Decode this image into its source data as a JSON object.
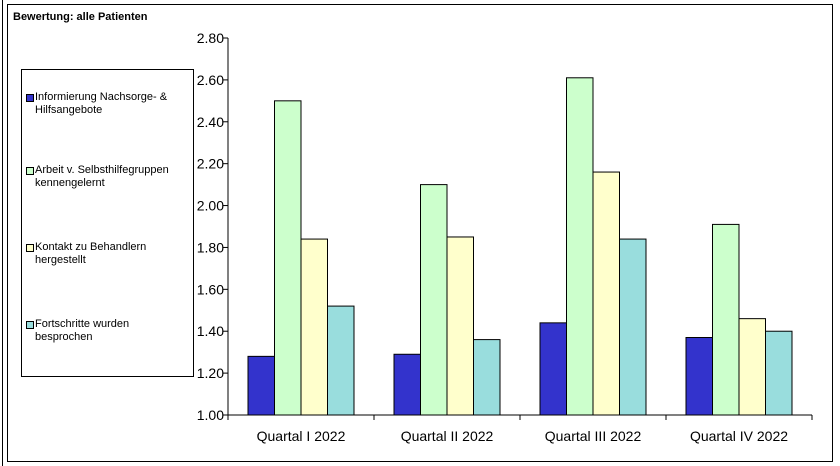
{
  "chart_data": {
    "type": "bar",
    "title": "Bewertung: alle Patienten",
    "xlabel": "",
    "ylabel": "",
    "categories": [
      "Quartal I 2022",
      "Quartal II 2022",
      "Quartal III 2022",
      "Quartal IV 2022"
    ],
    "series": [
      {
        "name": "Informierung Nachsorge- & Hilfsangebote",
        "color": "#3333cc",
        "values": [
          1.28,
          1.29,
          1.44,
          1.37
        ]
      },
      {
        "name": "Arbeit v. Selbsthilfegruppen kennengelernt",
        "color": "#ccffcc",
        "values": [
          2.5,
          2.1,
          2.61,
          1.91
        ]
      },
      {
        "name": "Kontakt zu Behandlern hergestellt",
        "color": "#ffffcc",
        "values": [
          1.84,
          1.85,
          2.16,
          1.46
        ]
      },
      {
        "name": "Fortschritte wurden besprochen",
        "color": "#99dddd",
        "values": [
          1.52,
          1.36,
          1.84,
          1.4
        ]
      }
    ],
    "ylim": [
      1.0,
      2.8
    ],
    "yticks": [
      "1.00",
      "1.20",
      "1.40",
      "1.60",
      "1.80",
      "2.00",
      "2.20",
      "2.40",
      "2.60",
      "2.80"
    ],
    "grid": false,
    "legend_position": "left"
  }
}
